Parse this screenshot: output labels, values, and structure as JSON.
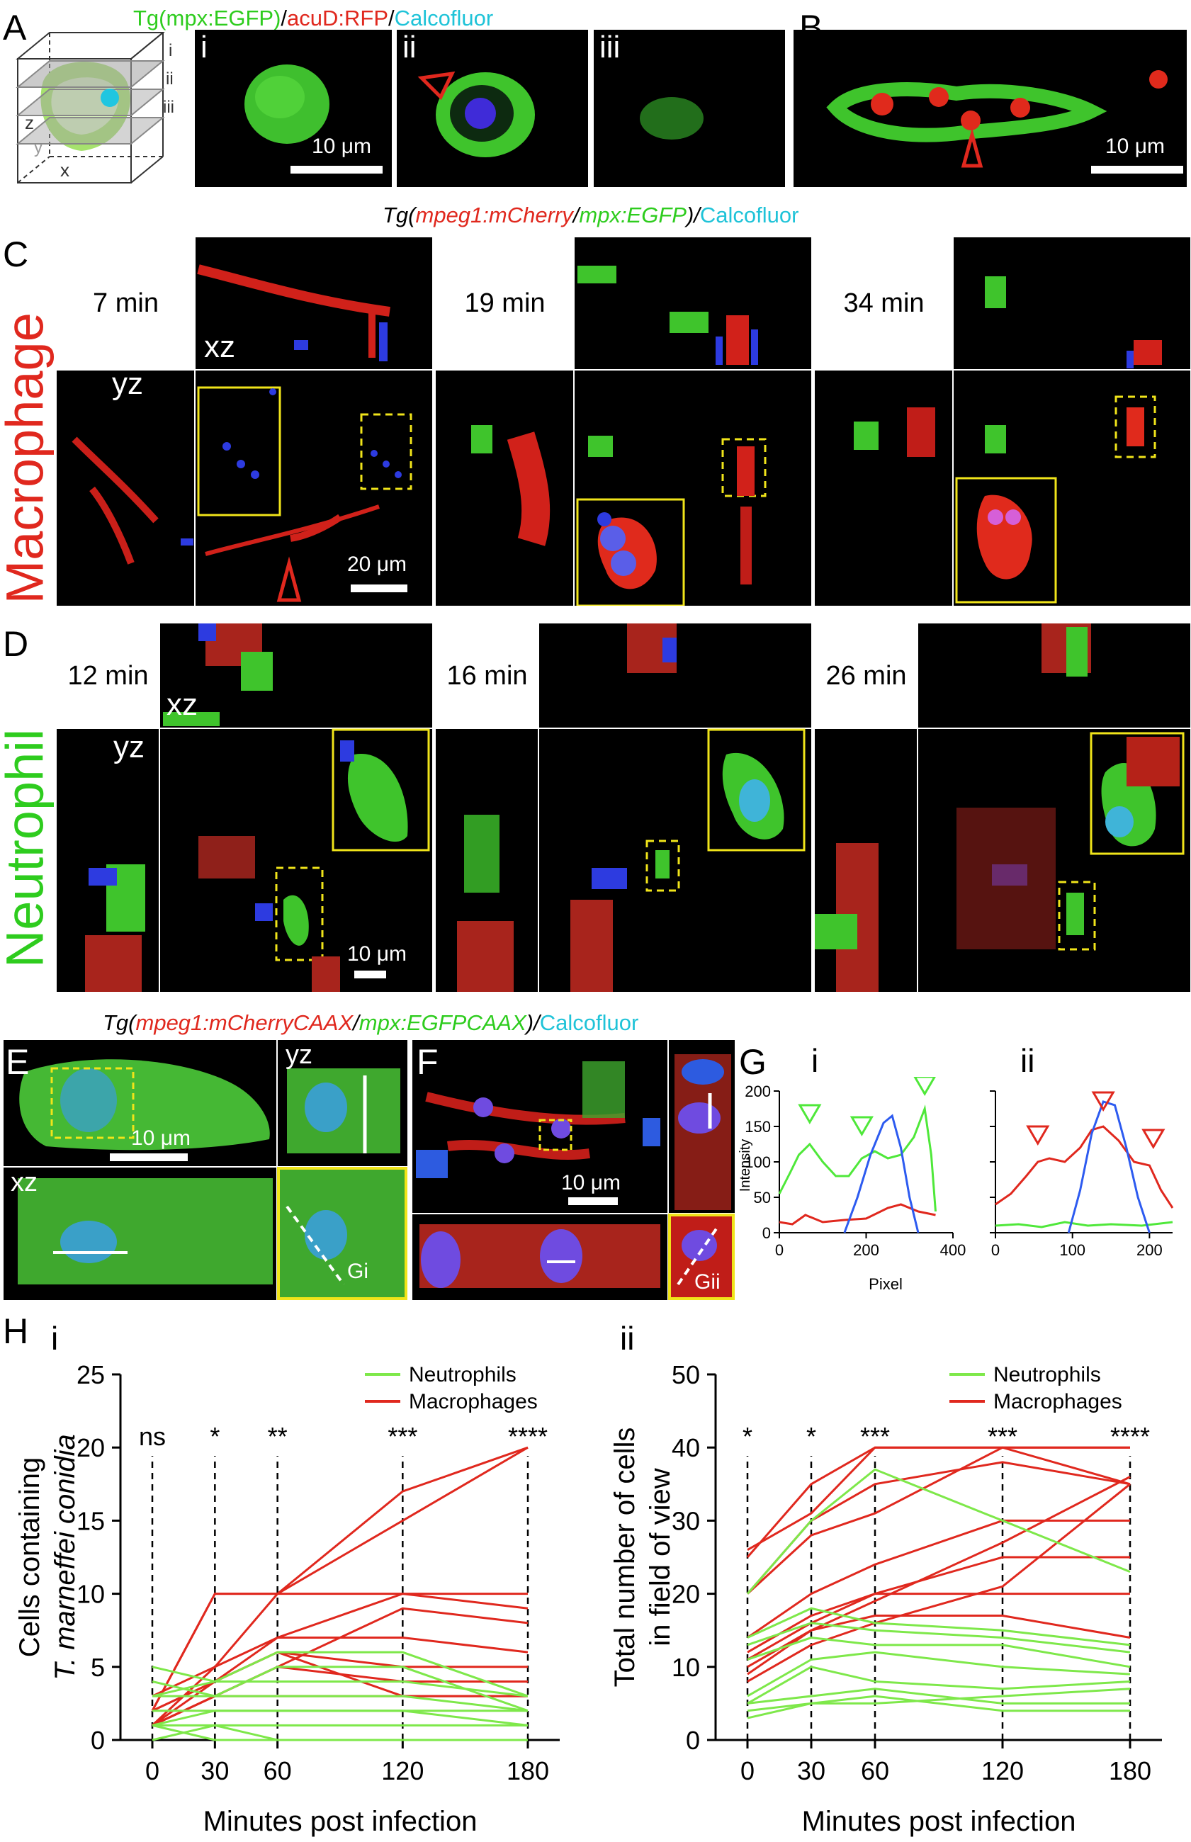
{
  "panels": {
    "A": {
      "label": "A",
      "title_parts": [
        "Tg(mpx:EGFP)",
        "/",
        "acuD:RFP",
        "/",
        "Calcofluor"
      ],
      "cube_axes": [
        "z",
        "y",
        "x"
      ],
      "cube_planes": [
        "i",
        "ii",
        "iii"
      ],
      "subpanels": [
        "i",
        "ii",
        "iii"
      ],
      "scalebar": "10 μm"
    },
    "B": {
      "label": "B",
      "scalebar": "10 μm"
    },
    "C_title_parts": [
      "Tg(",
      "mpeg1:mCherry",
      "/",
      "mpx:EGFP",
      ")/",
      "Calcofluor"
    ],
    "C": {
      "label": "C",
      "side_label": "Macrophage",
      "times": [
        "7 min",
        "19 min",
        "34 min"
      ],
      "xz": "xz",
      "yz": "yz",
      "scalebar": "20 μm"
    },
    "D": {
      "label": "D",
      "side_label": "Neutrophil",
      "times": [
        "12 min",
        "16 min",
        "26 min"
      ],
      "xz": "xz",
      "yz": "yz",
      "scalebar": "10 μm"
    },
    "EF_title_parts": [
      "Tg(",
      "mpeg1:mCherryCAAX",
      "/",
      "mpx:EGFPCAAX",
      ")/",
      "Calcofluor"
    ],
    "E": {
      "label": "E",
      "yz": "yz",
      "xz": "xz",
      "scalebar": "10 μm",
      "inset": "Gi"
    },
    "F": {
      "label": "F",
      "scalebar": "10 μm",
      "inset": "Gii"
    },
    "G": {
      "label": "G",
      "i": "i",
      "ii": "ii",
      "ylabel": "Intensity",
      "xlabel": "Pixel"
    },
    "H": {
      "label": "H",
      "i": "i",
      "ii": "ii",
      "xlabel": "Minutes post infection",
      "ylabel_i": [
        "Cells containing",
        "T. marneffei conidia"
      ],
      "ylabel_ii": [
        "Total number of cells",
        "in field of view"
      ],
      "legend": [
        "Neutrophils",
        "Macrophages"
      ]
    }
  },
  "colors": {
    "green": "#4fe83a",
    "red": "#e0281e",
    "blue": "#2d5bf0",
    "cyan": "#1fc3d8",
    "yellow": "#f0e41a"
  },
  "chart_data": [
    {
      "type": "line",
      "id": "Gi",
      "x_ticks": [
        0,
        200,
        400
      ],
      "y_ticks": [
        0,
        50,
        100,
        150,
        200
      ],
      "xlim": [
        0,
        400
      ],
      "ylim": [
        0,
        200
      ],
      "series": [
        {
          "color": "green",
          "x": [
            0,
            25,
            45,
            70,
            100,
            130,
            160,
            190,
            220,
            250,
            280,
            310,
            335,
            350,
            360
          ],
          "values": [
            55,
            85,
            110,
            125,
            100,
            80,
            80,
            105,
            115,
            105,
            110,
            135,
            175,
            110,
            30
          ]
        },
        {
          "color": "red",
          "x": [
            0,
            30,
            60,
            100,
            150,
            200,
            250,
            280,
            320,
            360
          ],
          "values": [
            15,
            12,
            25,
            15,
            18,
            20,
            35,
            40,
            30,
            25
          ]
        },
        {
          "color": "blue",
          "x": [
            150,
            180,
            210,
            240,
            260,
            280,
            300,
            320
          ],
          "values": [
            0,
            50,
            110,
            155,
            165,
            120,
            50,
            0
          ]
        }
      ]
    },
    {
      "type": "line",
      "id": "Gii",
      "x_ticks": [
        0,
        100,
        200
      ],
      "xlim": [
        0,
        230
      ],
      "ylim": [
        0,
        200
      ],
      "series": [
        {
          "color": "red",
          "x": [
            0,
            20,
            40,
            55,
            70,
            90,
            110,
            125,
            140,
            160,
            180,
            200,
            215,
            230
          ],
          "values": [
            40,
            55,
            80,
            100,
            105,
            100,
            120,
            145,
            150,
            130,
            100,
            95,
            60,
            35
          ]
        },
        {
          "color": "green",
          "x": [
            0,
            30,
            60,
            90,
            120,
            150,
            190,
            230
          ],
          "values": [
            10,
            12,
            8,
            15,
            10,
            12,
            10,
            15
          ]
        },
        {
          "color": "blue",
          "x": [
            95,
            110,
            125,
            140,
            155,
            170,
            185,
            200
          ],
          "values": [
            0,
            60,
            140,
            185,
            180,
            120,
            50,
            0
          ]
        }
      ]
    },
    {
      "type": "line",
      "id": "Hi",
      "xlabel": "Minutes post infection",
      "ylabel": "Cells containing T. marneffei conidia",
      "x": [
        0,
        30,
        60,
        120,
        180
      ],
      "y_ticks": [
        0,
        5,
        10,
        15,
        20,
        25
      ],
      "ylim": [
        0,
        25
      ],
      "significance": [
        "ns",
        "*",
        "**",
        "***",
        "****"
      ],
      "legend": [
        "Neutrophils",
        "Macrophages"
      ],
      "series": [
        {
          "name": "Macrophages",
          "values": [
            2,
            10,
            10,
            17,
            20
          ]
        },
        {
          "name": "Macrophages",
          "values": [
            3,
            5,
            10,
            15,
            20
          ]
        },
        {
          "name": "Macrophages",
          "values": [
            2,
            10,
            10,
            10,
            10
          ]
        },
        {
          "name": "Macrophages",
          "values": [
            2,
            4,
            7,
            10,
            9
          ]
        },
        {
          "name": "Macrophages",
          "values": [
            1,
            3,
            5,
            9,
            8
          ]
        },
        {
          "name": "Macrophages",
          "values": [
            1,
            5,
            7,
            7,
            6
          ]
        },
        {
          "name": "Macrophages",
          "values": [
            2,
            4,
            6,
            5,
            5
          ]
        },
        {
          "name": "Macrophages",
          "values": [
            1,
            3,
            5,
            4,
            4
          ]
        },
        {
          "name": "Macrophages",
          "values": [
            1,
            4,
            6,
            3,
            3
          ]
        },
        {
          "name": "Macrophages",
          "values": [
            1,
            3,
            3,
            3,
            3
          ]
        },
        {
          "name": "Neutrophils",
          "values": [
            5,
            4,
            6,
            6,
            3
          ]
        },
        {
          "name": "Neutrophils",
          "values": [
            4,
            3,
            5,
            5,
            2
          ]
        },
        {
          "name": "Neutrophils",
          "values": [
            3,
            4,
            4,
            4,
            3
          ]
        },
        {
          "name": "Neutrophils",
          "values": [
            3,
            3,
            3,
            3,
            2
          ]
        },
        {
          "name": "Neutrophils",
          "values": [
            2,
            2,
            2,
            2,
            1
          ]
        },
        {
          "name": "Neutrophils",
          "values": [
            1,
            1,
            1,
            1,
            1
          ]
        },
        {
          "name": "Neutrophils",
          "values": [
            1,
            2,
            2,
            2,
            2
          ]
        },
        {
          "name": "Neutrophils",
          "values": [
            0,
            1,
            0,
            0,
            0
          ]
        },
        {
          "name": "Neutrophils",
          "values": [
            1,
            0,
            0,
            0,
            0
          ]
        }
      ]
    },
    {
      "type": "line",
      "id": "Hii",
      "xlabel": "Minutes post infection",
      "ylabel": "Total number of cells in field of view",
      "x": [
        0,
        30,
        60,
        120,
        180
      ],
      "y_ticks": [
        0,
        10,
        20,
        30,
        40,
        50
      ],
      "ylim": [
        0,
        50
      ],
      "significance": [
        "*",
        "*",
        "***",
        "***",
        "****"
      ],
      "legend": [
        "Neutrophils",
        "Macrophages"
      ],
      "series": [
        {
          "name": "Macrophages",
          "values": [
            25,
            35,
            40,
            40,
            40
          ]
        },
        {
          "name": "Macrophages",
          "values": [
            26,
            31,
            40,
            40,
            35
          ]
        },
        {
          "name": "Macrophages",
          "values": [
            20,
            28,
            31,
            40,
            40
          ]
        },
        {
          "name": "Macrophages",
          "values": [
            20,
            30,
            35,
            38,
            35
          ]
        },
        {
          "name": "Macrophages",
          "values": [
            14,
            20,
            24,
            30,
            30
          ]
        },
        {
          "name": "Macrophages",
          "values": [
            12,
            17,
            20,
            25,
            25
          ]
        },
        {
          "name": "Macrophages",
          "values": [
            11,
            16,
            20,
            20,
            20
          ]
        },
        {
          "name": "Macrophages",
          "values": [
            10,
            15,
            19,
            27,
            36
          ]
        },
        {
          "name": "Macrophages",
          "values": [
            9,
            15,
            17,
            17,
            14
          ]
        },
        {
          "name": "Macrophages",
          "values": [
            8,
            13,
            16,
            21,
            35
          ]
        },
        {
          "name": "Neutrophils",
          "values": [
            20,
            30,
            37,
            30,
            23
          ]
        },
        {
          "name": "Neutrophils",
          "values": [
            14,
            18,
            16,
            15,
            13
          ]
        },
        {
          "name": "Neutrophils",
          "values": [
            13,
            16,
            15,
            14,
            12
          ]
        },
        {
          "name": "Neutrophils",
          "values": [
            11,
            14,
            13,
            13,
            10
          ]
        },
        {
          "name": "Neutrophils",
          "values": [
            6,
            11,
            12,
            10,
            9
          ]
        },
        {
          "name": "Neutrophils",
          "values": [
            5,
            10,
            8,
            7,
            8
          ]
        },
        {
          "name": "Neutrophils",
          "values": [
            5,
            6,
            7,
            5,
            5
          ]
        },
        {
          "name": "Neutrophils",
          "values": [
            4,
            5,
            6,
            4,
            4
          ]
        },
        {
          "name": "Neutrophils",
          "values": [
            3,
            5,
            5,
            6,
            7
          ]
        }
      ]
    }
  ]
}
